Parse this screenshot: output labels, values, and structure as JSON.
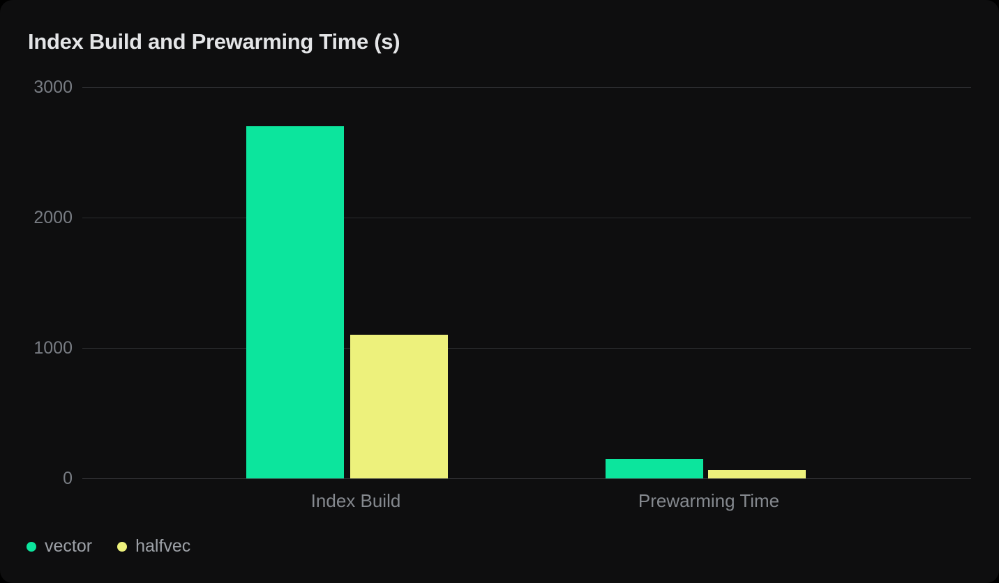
{
  "card": {
    "title": "Index Build and Prewarming Time (s)"
  },
  "colors": {
    "page_background": "#000000",
    "card_background": "#0e0e0f",
    "title_text": "#e4e5e7",
    "gridline": "#2b2c2f",
    "axis_baseline": "#3a3b3f",
    "y_tick_text": "#787c83",
    "category_text": "#85898f",
    "legend_text": "#9da1a7",
    "vector": "#0ce59d",
    "halfvec": "#edf17c"
  },
  "chart_data": {
    "type": "bar",
    "title": "Index Build and Prewarming Time (s)",
    "categories": [
      "Index Build",
      "Prewarming Time"
    ],
    "series": [
      {
        "name": "vector",
        "color": "#0ce59d",
        "values": [
          2700,
          150
        ]
      },
      {
        "name": "halfvec",
        "color": "#edf17c",
        "values": [
          1100,
          65
        ]
      }
    ],
    "ylabel": "",
    "xlabel": "",
    "ylim": [
      0,
      3000
    ],
    "y_ticks": [
      3000,
      2000,
      1000,
      0
    ],
    "grid": true,
    "legend_position": "bottom-left"
  }
}
